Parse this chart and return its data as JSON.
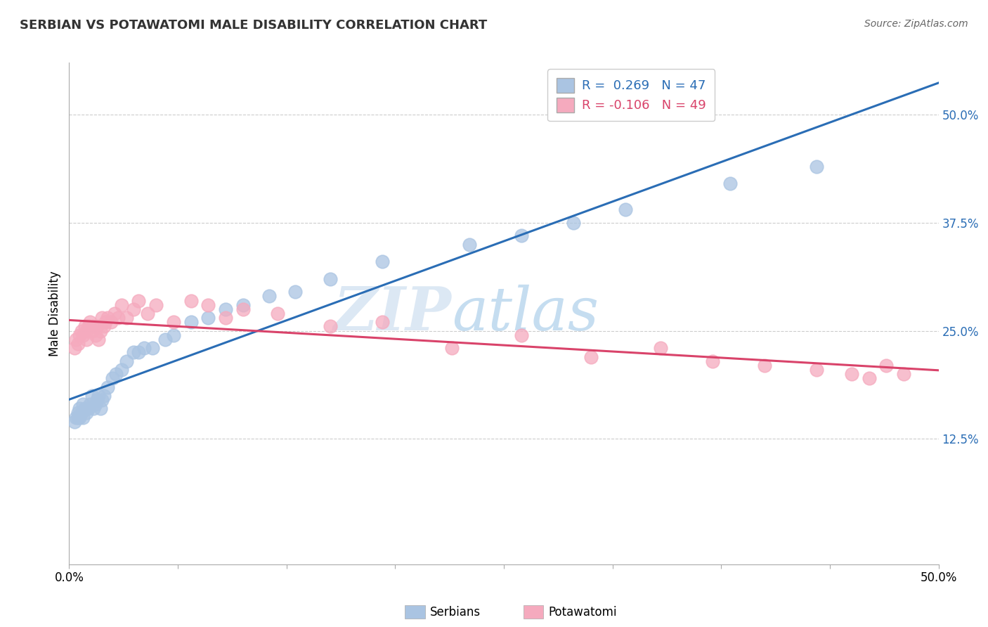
{
  "title": "SERBIAN VS POTAWATOMI MALE DISABILITY CORRELATION CHART",
  "source": "Source: ZipAtlas.com",
  "ylabel": "Male Disability",
  "legend_serbian_R": " 0.269",
  "legend_serbian_N": "47",
  "legend_potawatomi_R": "-0.106",
  "legend_potawatomi_N": "49",
  "serbian_color": "#aac4e2",
  "potawatomi_color": "#f5aabe",
  "line_serbian_color": "#2a6db5",
  "line_potawatomi_color": "#d9436a",
  "watermark_zip": "ZIP",
  "watermark_atlas": "atlas",
  "xmin": 0.0,
  "xmax": 0.5,
  "ymin": -0.02,
  "ymax": 0.56,
  "yticks": [
    0.125,
    0.25,
    0.375,
    0.5
  ],
  "ytick_labels": [
    "12.5%",
    "25.0%",
    "37.5%",
    "50.0%"
  ],
  "xtick_labels_show": [
    "0.0%",
    "50.0%"
  ],
  "serbian_x": [
    0.003,
    0.004,
    0.005,
    0.005,
    0.006,
    0.006,
    0.007,
    0.008,
    0.008,
    0.009,
    0.01,
    0.01,
    0.011,
    0.012,
    0.013,
    0.014,
    0.015,
    0.016,
    0.017,
    0.018,
    0.019,
    0.02,
    0.022,
    0.025,
    0.027,
    0.03,
    0.033,
    0.037,
    0.04,
    0.043,
    0.048,
    0.055,
    0.06,
    0.07,
    0.08,
    0.09,
    0.1,
    0.115,
    0.13,
    0.15,
    0.18,
    0.23,
    0.26,
    0.29,
    0.32,
    0.38,
    0.43
  ],
  "serbian_y": [
    0.145,
    0.15,
    0.155,
    0.15,
    0.16,
    0.15,
    0.155,
    0.15,
    0.165,
    0.16,
    0.155,
    0.16,
    0.16,
    0.165,
    0.175,
    0.16,
    0.165,
    0.17,
    0.175,
    0.16,
    0.17,
    0.175,
    0.185,
    0.195,
    0.2,
    0.205,
    0.215,
    0.225,
    0.225,
    0.23,
    0.23,
    0.24,
    0.245,
    0.26,
    0.265,
    0.275,
    0.28,
    0.29,
    0.295,
    0.31,
    0.33,
    0.35,
    0.36,
    0.375,
    0.39,
    0.42,
    0.44
  ],
  "potawatomi_x": [
    0.003,
    0.004,
    0.005,
    0.006,
    0.007,
    0.008,
    0.009,
    0.01,
    0.01,
    0.011,
    0.012,
    0.013,
    0.014,
    0.015,
    0.016,
    0.017,
    0.018,
    0.019,
    0.02,
    0.021,
    0.022,
    0.024,
    0.026,
    0.028,
    0.03,
    0.033,
    0.037,
    0.04,
    0.045,
    0.05,
    0.06,
    0.07,
    0.08,
    0.09,
    0.1,
    0.12,
    0.15,
    0.18,
    0.22,
    0.26,
    0.3,
    0.34,
    0.37,
    0.4,
    0.43,
    0.45,
    0.46,
    0.47,
    0.48
  ],
  "potawatomi_y": [
    0.23,
    0.24,
    0.235,
    0.245,
    0.25,
    0.245,
    0.255,
    0.24,
    0.25,
    0.255,
    0.26,
    0.25,
    0.255,
    0.245,
    0.255,
    0.24,
    0.25,
    0.265,
    0.255,
    0.26,
    0.265,
    0.26,
    0.27,
    0.265,
    0.28,
    0.265,
    0.275,
    0.285,
    0.27,
    0.28,
    0.26,
    0.285,
    0.28,
    0.265,
    0.275,
    0.27,
    0.255,
    0.26,
    0.23,
    0.245,
    0.22,
    0.23,
    0.215,
    0.21,
    0.205,
    0.2,
    0.195,
    0.21,
    0.2
  ]
}
